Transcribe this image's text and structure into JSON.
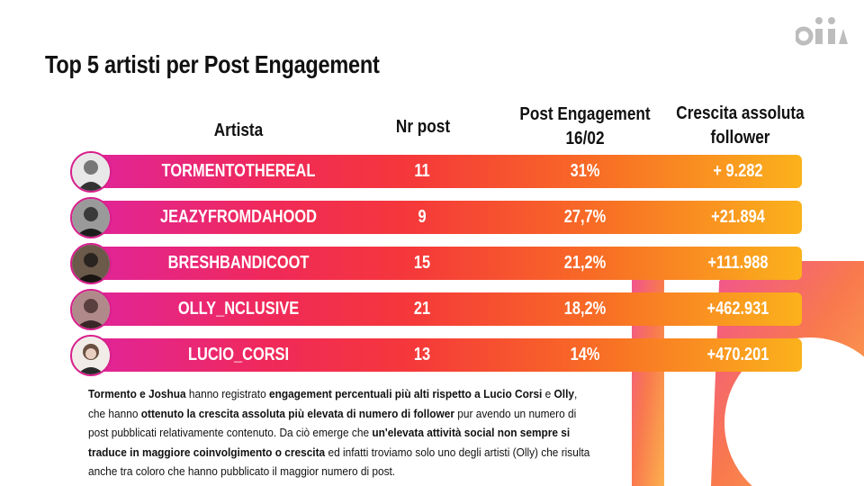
{
  "title": "Top 5 artisti per Post Engagement",
  "headers": {
    "artist": "Artista",
    "posts": "Nr post",
    "engagement_line1": "Post Engagement",
    "engagement_line2": "16/02",
    "growth_line1": "Crescita assoluta",
    "growth_line2": "follower"
  },
  "rows": [
    {
      "name": "TORMENTOTHEREAL",
      "posts": "11",
      "engagement": "31%",
      "growth": "+ 9.282"
    },
    {
      "name": "JEAZYFROMDAHOOD",
      "posts": "9",
      "engagement": "27,7%",
      "growth": "+21.894"
    },
    {
      "name": "BRESHBANDICOOT",
      "posts": "15",
      "engagement": "21,2%",
      "growth": "+111.988"
    },
    {
      "name": "OLLY_NCLUSIVE",
      "posts": "21",
      "engagement": "18,2%",
      "growth": "+462.931"
    },
    {
      "name": "LUCIO_CORSI",
      "posts": "13",
      "engagement": "14%",
      "growth": "+470.201"
    }
  ],
  "paragraph": {
    "s1": "Tormento e Joshua",
    "s2": " hanno registrato ",
    "s3": "engagement percentuali più alti rispetto a Lucio Corsi",
    "s4": " e ",
    "s5": "Olly",
    "s6": ", che hanno ",
    "s7": "ottenuto la crescita assoluta più elevata di numero di follower",
    "s8": " pur avendo un numero di post pubblicati relativamente contenuto. Da ciò emerge che ",
    "s9": "un'elevata attività social non sempre si traduce in maggiore coinvolgimento o crescita",
    "s10": " ed infatti troviamo solo uno degli artisti (Olly) che risulta anche tra coloro che hanno pubblicato il maggior numero di post."
  },
  "colors": {
    "gradient_start": "#e0249a",
    "gradient_mid": "#f5383a",
    "gradient_end": "#fbb21c",
    "logo": "#bdbdbd"
  },
  "icons": [
    "brand-logo-icon",
    "avatar-tormento",
    "avatar-jeazy",
    "avatar-bresh",
    "avatar-olly",
    "avatar-lucio"
  ]
}
